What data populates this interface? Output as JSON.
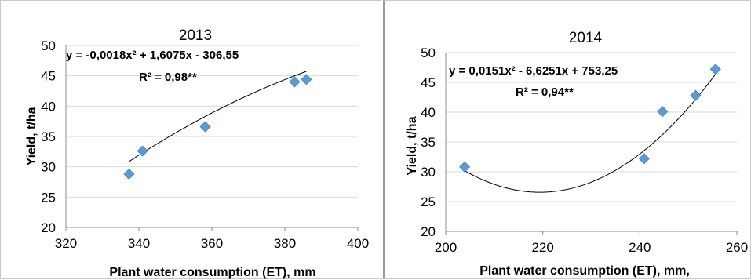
{
  "chart_data": [
    {
      "type": "scatter",
      "title": "2013",
      "xlabel": "Plant water consumption  (ET), mm",
      "ylabel": "Yield, t/ha",
      "xlim": [
        320,
        400
      ],
      "ylim": [
        20,
        50
      ],
      "xticks": [
        320,
        340,
        360,
        380,
        400
      ],
      "yticks": [
        20,
        25,
        30,
        35,
        40,
        45,
        50
      ],
      "grid": true,
      "marker_color": "#5b9bd5",
      "series": [
        {
          "x": [
            337.3,
            341.0,
            358.2,
            382.7,
            385.9
          ],
          "y": [
            28.8,
            32.6,
            36.6,
            44.0,
            44.4
          ]
        }
      ],
      "trendline": {
        "type": "polynomial",
        "coefficients": [
          -0.0018,
          1.6075,
          -306.55
        ],
        "x_range": [
          337.3,
          385.9
        ]
      },
      "annotations": [
        "y = -0,0018x² + 1,6075x - 306,55",
        "R² = 0,98**"
      ]
    },
    {
      "type": "scatter",
      "title": "2014",
      "xlabel": "Plant water consumption  (ET), mm,",
      "ylabel": "Yield, t/ha",
      "xlim": [
        200,
        260
      ],
      "ylim": [
        20,
        50
      ],
      "xticks": [
        200,
        220,
        240,
        260
      ],
      "yticks": [
        20,
        25,
        30,
        35,
        40,
        45,
        50
      ],
      "grid": true,
      "marker_color": "#5b9bd5",
      "series": [
        {
          "x": [
            203.9,
            240.9,
            244.7,
            251.5,
            255.6
          ],
          "y": [
            30.8,
            32.2,
            40.1,
            42.8,
            47.2
          ]
        }
      ],
      "trendline": {
        "type": "polynomial",
        "coefficients": [
          0.0151,
          -6.6251,
          753.25
        ],
        "x_range": [
          203.9,
          255.6
        ]
      },
      "annotations": [
        "y = 0,0151x² - 6,6251x + 753,25",
        "R² = 0,94**"
      ]
    }
  ]
}
